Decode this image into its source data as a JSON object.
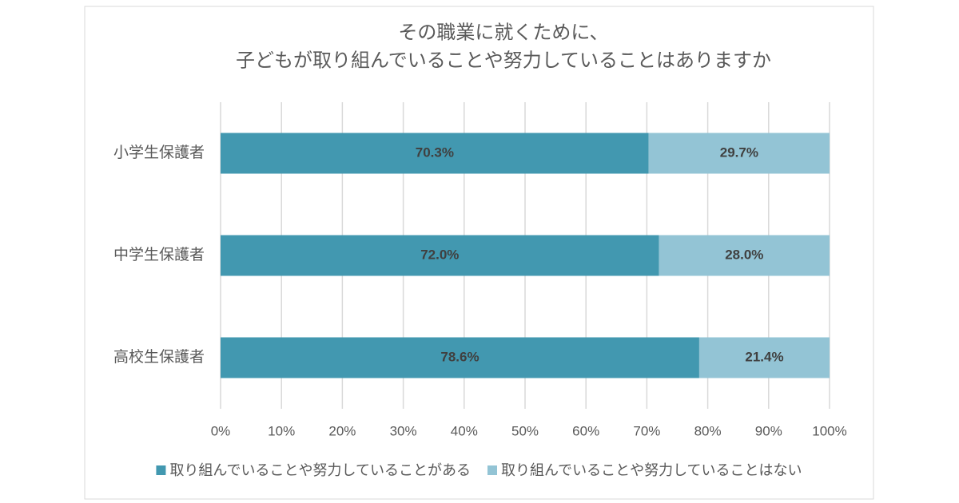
{
  "chart_data": {
    "type": "stacked-bar-horizontal",
    "title": [
      "その職業に就くために、",
      "子どもが取り組んでいることや努力していることはありますか"
    ],
    "categories": [
      "小学生保護者",
      "中学生保護者",
      "高校生保護者"
    ],
    "series": [
      {
        "name": "取り組んでいることや努力していることがある",
        "color": "#4298b0",
        "values": [
          70.3,
          72.0,
          78.6
        ],
        "value_labels": [
          "70.3%",
          "72.0%",
          "78.6%"
        ]
      },
      {
        "name": "取り組んでいることや努力していることはない",
        "color": "#93c4d5",
        "values": [
          29.7,
          28.0,
          21.4
        ],
        "value_labels": [
          "29.7%",
          "28.0%",
          "21.4%"
        ]
      }
    ],
    "xlim": [
      0,
      100
    ],
    "xticks": [
      {
        "value": 0,
        "label": "0%"
      },
      {
        "value": 10,
        "label": "10%"
      },
      {
        "value": 20,
        "label": "20%"
      },
      {
        "value": 30,
        "label": "30%"
      },
      {
        "value": 40,
        "label": "40%"
      },
      {
        "value": 50,
        "label": "50%"
      },
      {
        "value": 60,
        "label": "60%"
      },
      {
        "value": 70,
        "label": "70%"
      },
      {
        "value": 80,
        "label": "80%"
      },
      {
        "value": 90,
        "label": "90%"
      },
      {
        "value": 100,
        "label": "100%"
      }
    ],
    "grid": true,
    "legend": "bottom"
  }
}
